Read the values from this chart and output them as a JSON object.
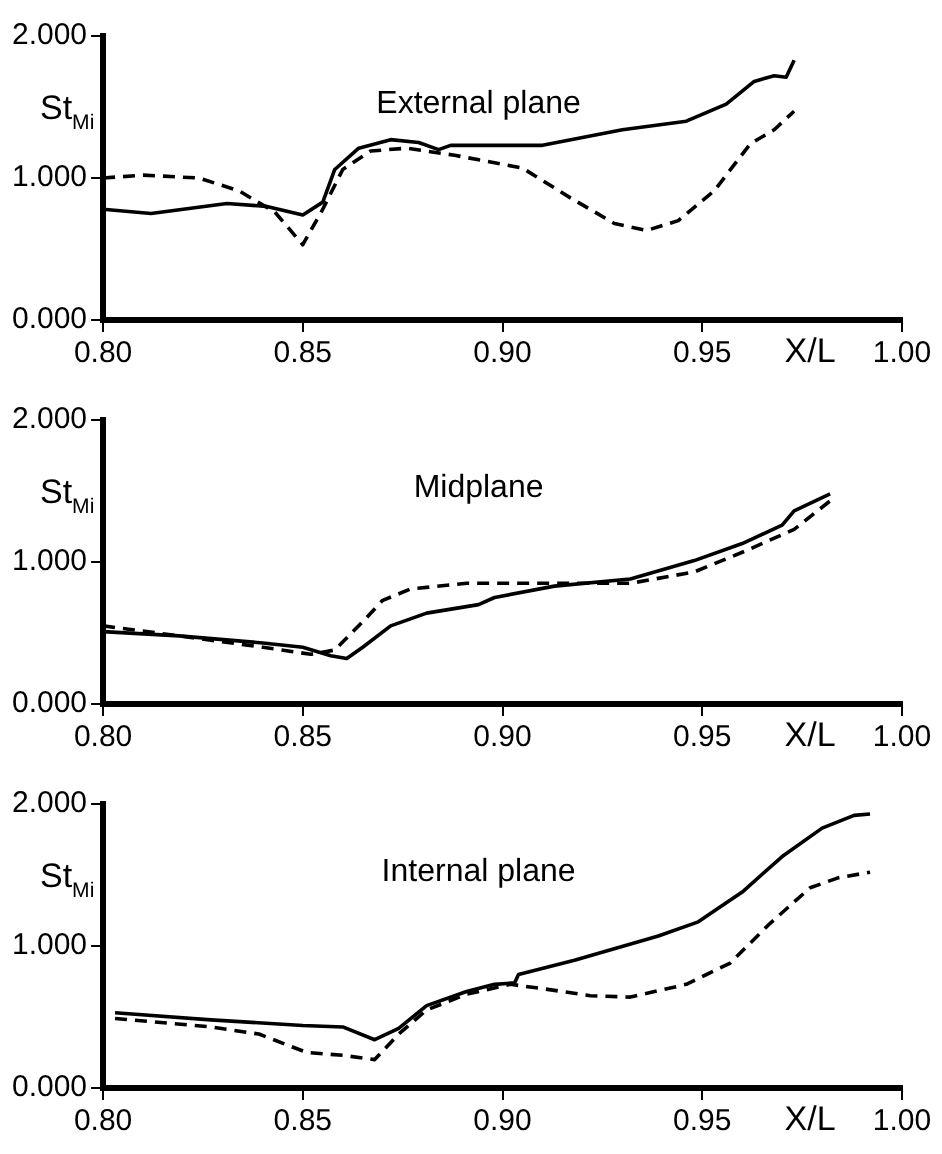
{
  "chart_data": [
    {
      "type": "line",
      "title": "External plane",
      "xlabel": "X/L",
      "ylabel": "St$_{Mi}$",
      "xlim": [
        0.8,
        1.0
      ],
      "ylim": [
        0,
        2
      ],
      "grid": false,
      "marker": "none",
      "xticks": [
        {
          "value": 0.8,
          "label": "0.80"
        },
        {
          "value": 0.85,
          "label": "0.85"
        },
        {
          "value": 0.9,
          "label": "0.90"
        },
        {
          "value": 0.95,
          "label": "0.95"
        },
        {
          "value": 1.0,
          "label": "1.00"
        }
      ],
      "yticks": [
        {
          "value": 0,
          "label": "0.000"
        },
        {
          "value": 1,
          "label": "1.000"
        },
        {
          "value": 2,
          "label": "2.000"
        }
      ],
      "series": [
        {
          "color": "#000000",
          "line_style": "solid",
          "x": [
            0.8,
            0.812,
            0.831,
            0.841,
            0.85,
            0.855,
            0.858,
            0.864,
            0.872,
            0.879,
            0.884,
            0.887,
            0.91,
            0.93,
            0.946,
            0.956,
            0.963,
            0.968,
            0.971,
            0.973
          ],
          "values": [
            0.78,
            0.75,
            0.82,
            0.8,
            0.74,
            0.83,
            1.06,
            1.21,
            1.27,
            1.25,
            1.2,
            1.23,
            1.23,
            1.34,
            1.4,
            1.52,
            1.68,
            1.72,
            1.71,
            1.83
          ]
        },
        {
          "color": "#000000",
          "line_style": "dashed",
          "x": [
            0.8,
            0.81,
            0.824,
            0.834,
            0.843,
            0.85,
            0.855,
            0.86,
            0.867,
            0.876,
            0.888,
            0.905,
            0.917,
            0.928,
            0.936,
            0.944,
            0.953,
            0.962,
            0.968,
            0.973
          ],
          "values": [
            1.0,
            1.02,
            1.0,
            0.91,
            0.76,
            0.53,
            0.78,
            1.06,
            1.19,
            1.21,
            1.16,
            1.07,
            0.86,
            0.68,
            0.63,
            0.7,
            0.91,
            1.24,
            1.34,
            1.47
          ]
        }
      ]
    },
    {
      "type": "line",
      "title": "Midplane",
      "xlabel": "X/L",
      "ylabel": "St$_{Mi}$",
      "xlim": [
        0.8,
        1.0
      ],
      "ylim": [
        0,
        2
      ],
      "grid": false,
      "marker": "none",
      "xticks": [
        {
          "value": 0.8,
          "label": "0.80"
        },
        {
          "value": 0.85,
          "label": "0.85"
        },
        {
          "value": 0.9,
          "label": "0.90"
        },
        {
          "value": 0.95,
          "label": "0.95"
        },
        {
          "value": 1.0,
          "label": "1.00"
        }
      ],
      "yticks": [
        {
          "value": 0,
          "label": "0.000"
        },
        {
          "value": 1,
          "label": "1.000"
        },
        {
          "value": 2,
          "label": "2.000"
        }
      ],
      "series": [
        {
          "color": "#000000",
          "line_style": "solid",
          "x": [
            0.8,
            0.819,
            0.84,
            0.85,
            0.857,
            0.861,
            0.865,
            0.872,
            0.881,
            0.894,
            0.898,
            0.913,
            0.932,
            0.948,
            0.96,
            0.97,
            0.973,
            0.982
          ],
          "values": [
            0.51,
            0.48,
            0.43,
            0.4,
            0.34,
            0.32,
            0.4,
            0.55,
            0.64,
            0.7,
            0.75,
            0.83,
            0.88,
            1.01,
            1.13,
            1.26,
            1.36,
            1.48
          ]
        },
        {
          "color": "#000000",
          "line_style": "dashed",
          "x": [
            0.8,
            0.819,
            0.84,
            0.852,
            0.858,
            0.865,
            0.87,
            0.877,
            0.891,
            0.913,
            0.932,
            0.948,
            0.961,
            0.973,
            0.982
          ],
          "values": [
            0.55,
            0.48,
            0.4,
            0.35,
            0.38,
            0.58,
            0.73,
            0.81,
            0.85,
            0.85,
            0.85,
            0.93,
            1.08,
            1.23,
            1.43
          ]
        }
      ]
    },
    {
      "type": "line",
      "title": "Internal plane",
      "xlabel": "X/L",
      "ylabel": "St$_{Mi}$",
      "xlim": [
        0.8,
        1.0
      ],
      "ylim": [
        0,
        2
      ],
      "grid": false,
      "marker": "none",
      "xticks": [
        {
          "value": 0.8,
          "label": "0.80"
        },
        {
          "value": 0.85,
          "label": "0.85"
        },
        {
          "value": 0.9,
          "label": "0.90"
        },
        {
          "value": 0.95,
          "label": "0.95"
        },
        {
          "value": 1.0,
          "label": "1.00"
        }
      ],
      "yticks": [
        {
          "value": 0,
          "label": "0.000"
        },
        {
          "value": 1,
          "label": "1.000"
        },
        {
          "value": 2,
          "label": "2.000"
        }
      ],
      "series": [
        {
          "color": "#000000",
          "line_style": "solid",
          "x": [
            0.803,
            0.827,
            0.85,
            0.86,
            0.868,
            0.874,
            0.881,
            0.891,
            0.898,
            0.903,
            0.904,
            0.918,
            0.939,
            0.949,
            0.96,
            0.97,
            0.98,
            0.988,
            0.992
          ],
          "values": [
            0.53,
            0.48,
            0.44,
            0.43,
            0.34,
            0.42,
            0.58,
            0.68,
            0.73,
            0.74,
            0.8,
            0.9,
            1.07,
            1.17,
            1.38,
            1.63,
            1.83,
            1.92,
            1.93
          ]
        },
        {
          "color": "#000000",
          "line_style": "dashed",
          "x": [
            0.803,
            0.827,
            0.839,
            0.851,
            0.86,
            0.868,
            0.874,
            0.881,
            0.891,
            0.902,
            0.91,
            0.922,
            0.932,
            0.946,
            0.957,
            0.967,
            0.977,
            0.984,
            0.992
          ],
          "values": [
            0.49,
            0.43,
            0.38,
            0.25,
            0.23,
            0.2,
            0.38,
            0.55,
            0.66,
            0.73,
            0.7,
            0.65,
            0.64,
            0.73,
            0.88,
            1.16,
            1.41,
            1.48,
            1.52
          ]
        }
      ]
    }
  ]
}
